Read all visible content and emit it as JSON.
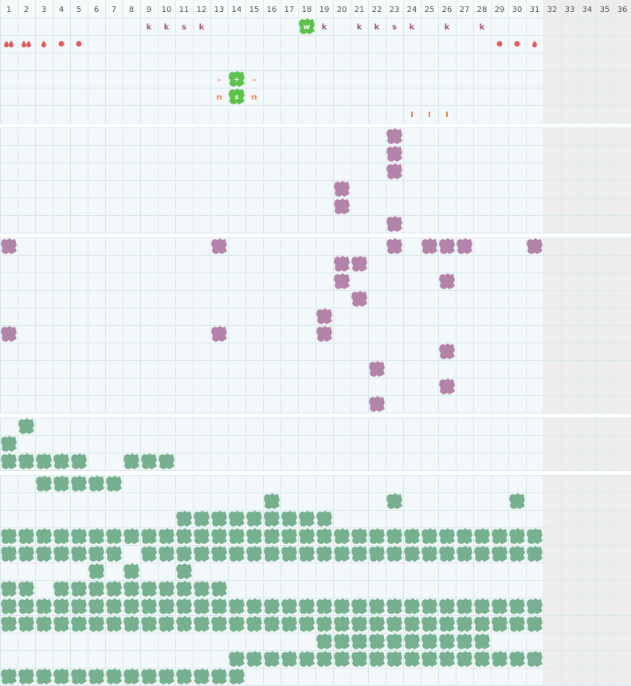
{
  "header": {
    "columns": [
      1,
      2,
      3,
      4,
      5,
      6,
      7,
      8,
      9,
      10,
      11,
      12,
      13,
      14,
      15,
      16,
      17,
      18,
      19,
      20,
      21,
      22,
      23,
      24,
      25,
      26,
      27,
      28,
      29,
      30,
      31,
      32,
      33,
      34,
      35,
      36
    ]
  },
  "sections": [
    {
      "rows": [
        [
          {
            "col": 9,
            "text": "k",
            "color": "#a0588c"
          },
          {
            "col": 10,
            "text": "k",
            "color": "#a0588c"
          },
          {
            "col": 11,
            "text": "s",
            "color": "#a0588c"
          },
          {
            "col": 12,
            "text": "k",
            "color": "#a0588c"
          },
          {
            "col": 18,
            "text": "w",
            "blob": "#5cc24a"
          },
          {
            "col": 19,
            "text": "k",
            "color": "#a0588c"
          },
          {
            "col": 21,
            "text": "k",
            "color": "#a0588c"
          },
          {
            "col": 22,
            "text": "k",
            "color": "#a0588c"
          },
          {
            "col": 23,
            "text": "s",
            "color": "#a0588c"
          },
          {
            "col": 24,
            "text": "k",
            "color": "#a0588c"
          },
          {
            "col": 26,
            "text": "k",
            "color": "#a0588c"
          },
          {
            "col": 28,
            "text": "k",
            "color": "#a0588c"
          }
        ],
        [
          {
            "col": 1,
            "icon": "drops"
          },
          {
            "col": 2,
            "icon": "drops"
          },
          {
            "col": 3,
            "icon": "drop"
          },
          {
            "col": 4,
            "icon": "dot"
          },
          {
            "col": 5,
            "icon": "dot"
          },
          {
            "col": 29,
            "icon": "dot"
          },
          {
            "col": 30,
            "icon": "dot"
          },
          {
            "col": 31,
            "icon": "drop"
          }
        ],
        [],
        [
          {
            "col": 13,
            "text": "–",
            "color": "#f07a3a"
          },
          {
            "col": 14,
            "text": "+",
            "blob": "#5cc24a"
          },
          {
            "col": 15,
            "text": "–",
            "color": "#f07a3a"
          }
        ],
        [
          {
            "col": 13,
            "text": "n",
            "color": "#f07a3a"
          },
          {
            "col": 14,
            "text": "s",
            "blob": "#5cc24a"
          },
          {
            "col": 15,
            "text": "n",
            "color": "#f07a3a"
          }
        ],
        [
          {
            "col": 24,
            "text": "I",
            "color": "#f07a3a"
          },
          {
            "col": 25,
            "text": "I",
            "color": "#f07a3a"
          },
          {
            "col": 26,
            "text": "I",
            "color": "#f07a3a"
          }
        ]
      ]
    },
    {
      "color": "#b483a9",
      "rows": [
        [
          23
        ],
        [
          23
        ],
        [
          23
        ],
        [
          20
        ],
        [
          20
        ],
        [
          23
        ]
      ]
    },
    {
      "color": "#b483a9",
      "rows": [
        [
          1,
          13,
          23,
          25,
          26,
          27,
          31
        ],
        [
          20,
          21
        ],
        [
          20,
          26
        ],
        [
          21
        ],
        [
          19
        ],
        [
          1,
          13,
          19
        ],
        [
          26
        ],
        [
          22
        ],
        [
          26
        ],
        [
          22
        ]
      ]
    },
    {
      "color": "#76b08e",
      "rows": [
        [
          2
        ],
        [
          1
        ],
        [
          1,
          2,
          3,
          4,
          5,
          8,
          9,
          10
        ]
      ]
    },
    {
      "color": "#76b08e",
      "rows": [
        [
          3,
          4,
          5,
          6,
          7
        ],
        [
          16,
          23,
          30
        ],
        [
          11,
          12,
          13,
          14,
          15,
          16,
          17,
          18,
          19
        ],
        [
          1,
          2,
          3,
          4,
          5,
          6,
          7,
          8,
          9,
          10,
          11,
          12,
          13,
          14,
          15,
          16,
          17,
          18,
          19,
          20,
          21,
          22,
          23,
          24,
          25,
          26,
          27,
          28,
          29,
          30,
          31
        ],
        [
          1,
          2,
          3,
          4,
          5,
          6,
          7,
          9,
          10,
          11,
          12,
          13,
          14,
          15,
          16,
          17,
          18,
          19,
          20,
          21,
          22,
          23,
          24,
          25,
          26,
          27,
          28,
          29,
          30,
          31
        ],
        [
          6,
          8,
          11
        ],
        [
          1,
          2,
          4,
          5,
          6,
          7,
          8,
          9,
          10,
          11,
          12,
          13
        ],
        [
          1,
          2,
          3,
          4,
          5,
          6,
          7,
          8,
          9,
          10,
          11,
          12,
          13,
          14,
          15,
          16,
          17,
          18,
          19,
          20,
          21,
          22,
          23,
          24,
          25,
          26,
          27,
          28,
          29,
          30,
          31
        ],
        [
          1,
          2,
          3,
          4,
          5,
          6,
          7,
          8,
          9,
          10,
          11,
          12,
          13,
          14,
          15,
          16,
          17,
          18,
          19,
          20,
          21,
          22,
          23,
          24,
          25,
          26,
          27,
          28,
          29,
          30,
          31
        ],
        [
          19,
          20,
          21,
          22,
          23,
          24,
          25,
          26,
          27,
          28
        ],
        [
          14,
          15,
          16,
          17,
          18,
          19,
          20,
          21,
          22,
          23,
          24,
          25,
          26,
          27,
          28,
          29,
          30,
          31
        ],
        [
          1,
          2,
          3,
          4,
          5,
          6,
          7,
          8,
          9,
          10,
          11,
          12,
          13,
          14
        ]
      ]
    }
  ]
}
